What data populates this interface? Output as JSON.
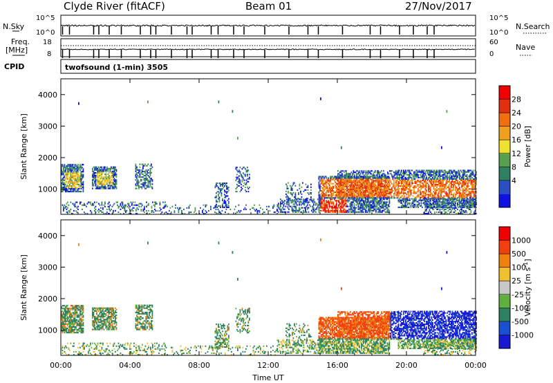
{
  "header": {
    "station": "Clyde River (fitACF)",
    "beam": "Beam 01",
    "date": "27/Nov/2017"
  },
  "noise_panel": {
    "left_label": "N.Sky",
    "right_label": "N.Search",
    "left_ticks": [
      "10^5",
      "10^0"
    ],
    "right_ticks": [
      "10^5",
      "10^0"
    ]
  },
  "freq_panel": {
    "left_label_1": "Freq.",
    "left_label_2": "[MHz]",
    "right_label": "Nave",
    "left_ticks": [
      "18",
      "8"
    ],
    "right_ticks": [
      "60",
      "0"
    ],
    "cpid_label": "CPID",
    "cpid_text": "twofsound (1-min) 3505"
  },
  "x_axis": {
    "label": "Time UT",
    "ticks": [
      "00:00",
      "04:00",
      "08:00",
      "12:00",
      "16:00",
      "20:00",
      "00:00"
    ]
  },
  "chart_data": [
    {
      "type": "heatmap",
      "name": "power",
      "ylabel": "Slant Range [km]",
      "yticks": [
        "4000",
        "3000",
        "2000",
        "1000"
      ],
      "ylim": [
        200,
        4500
      ],
      "xlim": [
        0,
        24
      ],
      "colorbar": {
        "label": "Power [dB]",
        "ticks": [
          "28",
          "24",
          "20",
          "16",
          "12",
          "8",
          "4"
        ],
        "colors": [
          "#1010e0",
          "#2a4fc0",
          "#2e8060",
          "#58a050",
          "#f0e030",
          "#f0a020",
          "#f07010",
          "#e03010",
          "#f00000"
        ]
      }
    },
    {
      "type": "heatmap",
      "name": "velocity",
      "ylabel": "Slant Range [km]",
      "yticks": [
        "4000",
        "3000",
        "2000",
        "1000"
      ],
      "ylim": [
        200,
        4500
      ],
      "xlim": [
        0,
        24
      ],
      "colorbar": {
        "label": "Velocity [m s^-1]",
        "ticks": [
          "1000",
          "500",
          "100",
          "25",
          "-25",
          "-100",
          "-500",
          "-1000"
        ],
        "colors": [
          "#1818d0",
          "#1850d0",
          "#2e8060",
          "#60b040",
          "#c8c8c8",
          "#f0c030",
          "#f08010",
          "#f04010",
          "#f00000"
        ]
      }
    }
  ]
}
